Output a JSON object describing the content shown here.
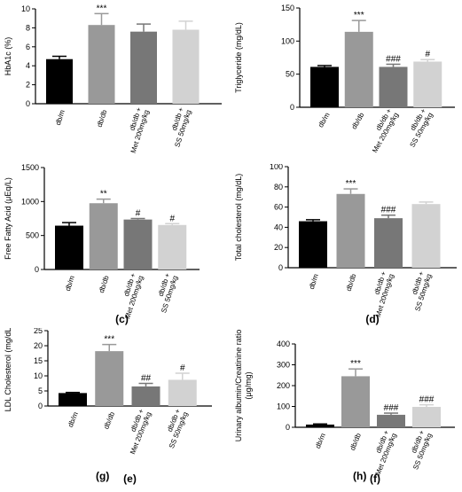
{
  "colors": {
    "bar_fills": [
      "#000000",
      "#999999",
      "#777777",
      "#d2d2d2"
    ],
    "axis": "#000000"
  },
  "chart_data": [
    {
      "type": "bar",
      "panel_label": "",
      "ylabel": "HbA1c (%)",
      "categories": [
        "db/m",
        "db/db",
        "db/db +\nMet 200mg/kg",
        "db/db +\nSS 50mg/kg"
      ],
      "values": [
        4.7,
        8.3,
        7.6,
        7.8
      ],
      "errors": [
        0.3,
        1.2,
        0.8,
        0.9
      ],
      "annotations": [
        "",
        "***",
        "",
        ""
      ],
      "ylim": [
        0,
        10
      ],
      "yticks": [
        "0",
        "2",
        "4",
        "6",
        "8",
        "10"
      ]
    },
    {
      "type": "bar",
      "panel_label": "",
      "ylabel": "Triglyceride (mg/dL)",
      "categories": [
        "db/m",
        "db/db",
        "db/db +\nMet 200mg/kg",
        "db/db +\nSS 50mg/kg"
      ],
      "values": [
        61,
        114,
        61,
        69
      ],
      "errors": [
        2,
        17,
        4,
        3
      ],
      "annotations": [
        "",
        "***",
        "###",
        "#"
      ],
      "ylim": [
        0,
        150
      ],
      "yticks": [
        "0",
        "50",
        "100",
        "150"
      ]
    },
    {
      "type": "bar",
      "panel_label": "(c)",
      "ylabel": "Free Fatty Acid (μEq/L)",
      "categories": [
        "db/m",
        "db/db",
        "db/db +\nMet 200mg/kg",
        "db/db +\nSS 50mg/kg"
      ],
      "values": [
        645,
        975,
        735,
        655
      ],
      "errors": [
        45,
        60,
        15,
        20
      ],
      "annotations": [
        "",
        "**",
        "#",
        "#"
      ],
      "ylim": [
        0,
        1500
      ],
      "yticks": [
        "0",
        "500",
        "1000",
        "1500"
      ]
    },
    {
      "type": "bar",
      "panel_label": "(d)",
      "ylabel": "Total cholesterol (mg/dL)",
      "categories": [
        "db/m",
        "db/db",
        "db/db +\nMet 200mg/kg",
        "db/db +\nSS 50mg/kg"
      ],
      "values": [
        46,
        73,
        49,
        63
      ],
      "errors": [
        1.5,
        5,
        3,
        2
      ],
      "annotations": [
        "",
        "***",
        "###",
        ""
      ],
      "ylim": [
        0,
        100
      ],
      "yticks": [
        "0",
        "20",
        "40",
        "60",
        "80",
        "100"
      ]
    },
    {
      "type": "bar",
      "panel_label": "(e)",
      "ylabel": "LDL Cholesterol (mg/dL)",
      "categories": [
        "db/m",
        "db/db",
        "db/db +\nMet 200mg/kg",
        "db/db +\nSS 50mg/kg"
      ],
      "values": [
        4.3,
        18.2,
        6.5,
        8.7
      ],
      "errors": [
        0.2,
        2.2,
        1.0,
        2.2
      ],
      "annotations": [
        "",
        "***",
        "##",
        "#"
      ],
      "ylim": [
        0,
        25
      ],
      "yticks": [
        "0",
        "5",
        "10",
        "15",
        "20",
        "25"
      ]
    },
    {
      "type": "bar",
      "panel_label": "(f)",
      "ylabel": "Urinary albumin/Creatinine ratio\n(μg/mg)",
      "categories": [
        "db/m",
        "db/db",
        "db/db +\nMet 200mg/kg",
        "db/db +\nSS 50mg/kg"
      ],
      "values": [
        13,
        245,
        60,
        98
      ],
      "errors": [
        3,
        35,
        8,
        10
      ],
      "annotations": [
        "",
        "***",
        "###",
        "###"
      ],
      "ylim": [
        0,
        400
      ],
      "yticks": [
        "0",
        "100",
        "200",
        "300",
        "400"
      ]
    }
  ],
  "bottom_labels": [
    "(g)",
    "(h)"
  ]
}
